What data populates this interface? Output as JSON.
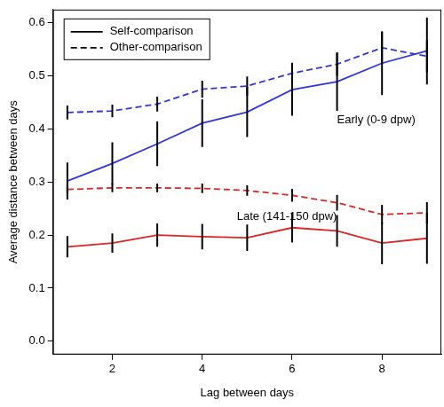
{
  "chart_data": {
    "type": "line",
    "x_label": "Lag between days",
    "y_label": "Average distance between days",
    "x": [
      1,
      2,
      3,
      4,
      5,
      6,
      7,
      8,
      9
    ],
    "xlim": [
      0.68,
      9.32
    ],
    "xticks": [
      2,
      4,
      6,
      8
    ],
    "ylim": [
      -0.025,
      0.625
    ],
    "yticks": [
      {
        "value": 0,
        "label": "0.0"
      },
      0.1,
      0.2,
      0.3,
      0.4,
      0.5,
      0.6
    ],
    "grid": false,
    "legend": "top-left",
    "annotations": [
      "Early (0-9 dpw)",
      "Late (141-150 dpw)"
    ],
    "series": [
      {
        "name": "Self-comparison",
        "color": "#2f36e0",
        "line_style": "solid",
        "values": [
          0.302,
          0.335,
          0.372,
          0.411,
          0.432,
          0.474,
          0.489,
          0.524,
          0.547
        ],
        "errors": [
          0.035,
          0.04,
          0.042,
          0.045,
          0.047,
          0.049,
          0.055,
          0.06,
          0.063
        ]
      },
      {
        "name": "Other-comparison",
        "color": "#2f36e0",
        "line_style": "dashed",
        "values": [
          0.431,
          0.434,
          0.447,
          0.475,
          0.481,
          0.505,
          0.522,
          0.553,
          0.537
        ],
        "errors": [
          0.013,
          0.012,
          0.014,
          0.016,
          0.018,
          0.02,
          0.022,
          0.03,
          0.03
        ]
      },
      {
        "name": "Other-comparison",
        "color": "#e02424",
        "line_style": "dashed",
        "values": [
          0.286,
          0.289,
          0.289,
          0.288,
          0.284,
          0.275,
          0.261,
          0.239,
          0.242
        ],
        "errors": [
          0.008,
          0.008,
          0.008,
          0.009,
          0.01,
          0.012,
          0.015,
          0.018,
          0.02
        ]
      },
      {
        "name": "Self-comparison",
        "color": "#e02424",
        "line_style": "solid",
        "values": [
          0.178,
          0.185,
          0.2,
          0.197,
          0.195,
          0.214,
          0.208,
          0.185,
          0.194
        ],
        "errors": [
          0.02,
          0.018,
          0.022,
          0.024,
          0.025,
          0.028,
          0.03,
          0.04,
          0.048
        ]
      }
    ]
  }
}
